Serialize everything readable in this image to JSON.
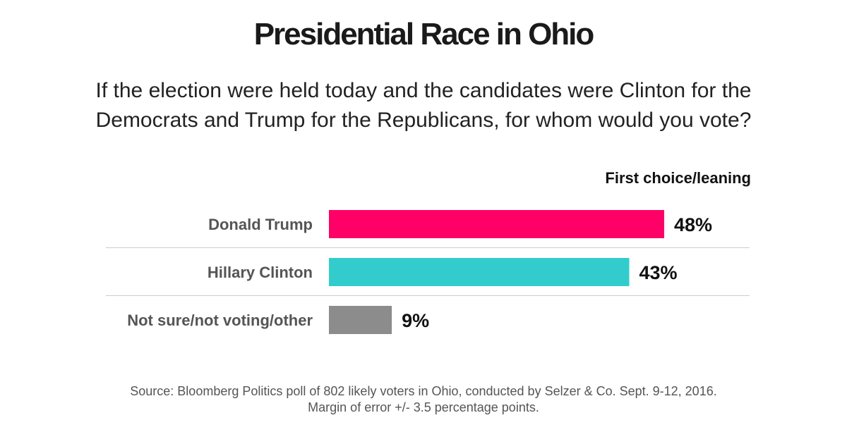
{
  "title": "Presidential Race in Ohio",
  "subtitle": "If the election were held today and the candidates were Clinton for the Democrats and Trump for the Republicans, for whom would you vote?",
  "column_header": "First choice/leaning",
  "source": {
    "line1": "Source: Bloomberg Politics poll of 802 likely voters in Ohio, conducted by Selzer & Co. Sept. 9-12, 2016.",
    "line2": "Margin of error +/- 3.5 percentage points."
  },
  "chart_data": {
    "type": "bar",
    "orientation": "horizontal",
    "title": "Presidential Race in Ohio",
    "categories": [
      "Donald Trump",
      "Hillary Clinton",
      "Not sure/not voting/other"
    ],
    "values": [
      48,
      43,
      9
    ],
    "value_labels": [
      "48%",
      "43%",
      "9%"
    ],
    "colors": [
      "#ff0066",
      "#33cccc",
      "#8c8c8c"
    ],
    "unit": "%",
    "xlabel": "",
    "ylabel": "",
    "grid": false,
    "legend": "none"
  }
}
